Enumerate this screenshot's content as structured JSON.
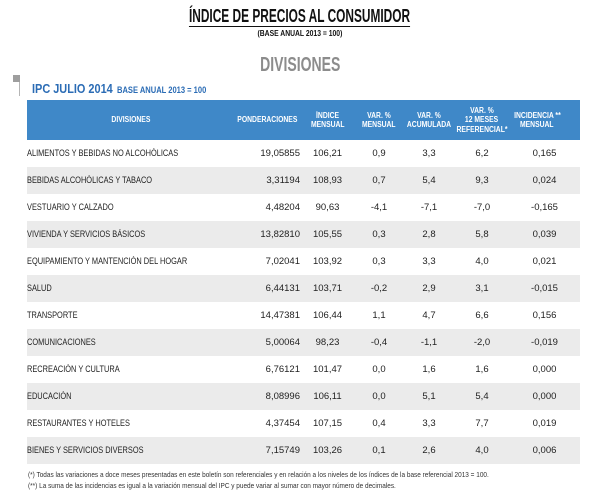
{
  "header": {
    "title": "ÍNDICE DE PRECIOS AL CONSUMIDOR",
    "subtitle": "(BASE ANUAL 2013 = 100)"
  },
  "section": {
    "title": "DIVISIONES"
  },
  "table": {
    "title": "IPC JULIO 2014",
    "base": "BASE ANUAL 2013 = 100",
    "columns": [
      {
        "lines": [
          "DIVISIONES"
        ]
      },
      {
        "lines": [
          "PONDERACIONES"
        ]
      },
      {
        "lines": [
          "ÍNDICE",
          "MENSUAL"
        ]
      },
      {
        "lines": [
          "VAR. %",
          "MENSUAL"
        ]
      },
      {
        "lines": [
          "VAR. %",
          "ACUMULADA"
        ]
      },
      {
        "lines": [
          "VAR. %",
          "12 MESES",
          "REFERENCIAL*"
        ]
      },
      {
        "lines": [
          "INCIDENCIA **",
          "MENSUAL"
        ]
      }
    ],
    "rows": [
      {
        "division": "ALIMENTOS Y BEBIDAS NO ALCOHÓLICAS",
        "ponderacion": "19,05855",
        "indice_mensual": "106,21",
        "var_mensual": "0,9",
        "var_acumulada": "3,3",
        "var_12_meses": "6,2",
        "incidencia_mensual": "0,165"
      },
      {
        "division": "BEBIDAS ALCOHÓLICAS Y TABACO",
        "ponderacion": "3,31194",
        "indice_mensual": "108,93",
        "var_mensual": "0,7",
        "var_acumulada": "5,4",
        "var_12_meses": "9,3",
        "incidencia_mensual": "0,024"
      },
      {
        "division": "VESTUARIO Y CALZADO",
        "ponderacion": "4,48204",
        "indice_mensual": "90,63",
        "var_mensual": "-4,1",
        "var_acumulada": "-7,1",
        "var_12_meses": "-7,0",
        "incidencia_mensual": "-0,165"
      },
      {
        "division": "VIVIENDA Y SERVICIOS BÁSICOS",
        "ponderacion": "13,82810",
        "indice_mensual": "105,55",
        "var_mensual": "0,3",
        "var_acumulada": "2,8",
        "var_12_meses": "5,8",
        "incidencia_mensual": "0,039"
      },
      {
        "division": "EQUIPAMIENTO Y MANTENCIÓN DEL HOGAR",
        "ponderacion": "7,02041",
        "indice_mensual": "103,92",
        "var_mensual": "0,3",
        "var_acumulada": "3,3",
        "var_12_meses": "4,0",
        "incidencia_mensual": "0,021"
      },
      {
        "division": "SALUD",
        "ponderacion": "6,44131",
        "indice_mensual": "103,71",
        "var_mensual": "-0,2",
        "var_acumulada": "2,9",
        "var_12_meses": "3,1",
        "incidencia_mensual": "-0,015"
      },
      {
        "division": "TRANSPORTE",
        "ponderacion": "14,47381",
        "indice_mensual": "106,44",
        "var_mensual": "1,1",
        "var_acumulada": "4,7",
        "var_12_meses": "6,6",
        "incidencia_mensual": "0,156"
      },
      {
        "division": "COMUNICACIONES",
        "ponderacion": "5,00064",
        "indice_mensual": "98,23",
        "var_mensual": "-0,4",
        "var_acumulada": "-1,1",
        "var_12_meses": "-2,0",
        "incidencia_mensual": "-0,019"
      },
      {
        "division": "RECREACIÓN Y CULTURA",
        "ponderacion": "6,76121",
        "indice_mensual": "101,47",
        "var_mensual": "0,0",
        "var_acumulada": "1,6",
        "var_12_meses": "1,6",
        "incidencia_mensual": "0,000"
      },
      {
        "division": "EDUCACIÓN",
        "ponderacion": "8,08996",
        "indice_mensual": "106,11",
        "var_mensual": "0,0",
        "var_acumulada": "5,1",
        "var_12_meses": "5,4",
        "incidencia_mensual": "0,000"
      },
      {
        "division": "RESTAURANTES Y HOTELES",
        "ponderacion": "4,37454",
        "indice_mensual": "107,15",
        "var_mensual": "0,4",
        "var_acumulada": "3,3",
        "var_12_meses": "7,7",
        "incidencia_mensual": "0,019"
      },
      {
        "division": "BIENES Y SERVICIOS DIVERSOS",
        "ponderacion": "7,15749",
        "indice_mensual": "103,26",
        "var_mensual": "0,1",
        "var_acumulada": "2,6",
        "var_12_meses": "4,0",
        "incidencia_mensual": "0,006"
      }
    ]
  },
  "footnotes": [
    "(*) Todas las variaciones a doce meses presentadas en este boletín son referenciales y en relación a los niveles de los índices de la base referencial 2013 = 100.",
    "(**) La suma de las incidencias es igual a la variación mensual del IPC y puede variar al sumar con mayor número de decimales."
  ],
  "colors": {
    "header_blue": "#3f88c8",
    "title_blue": "#2b6cb5",
    "section_gray": "#8c8c8c",
    "stripe_gray": "#ebebeb"
  }
}
